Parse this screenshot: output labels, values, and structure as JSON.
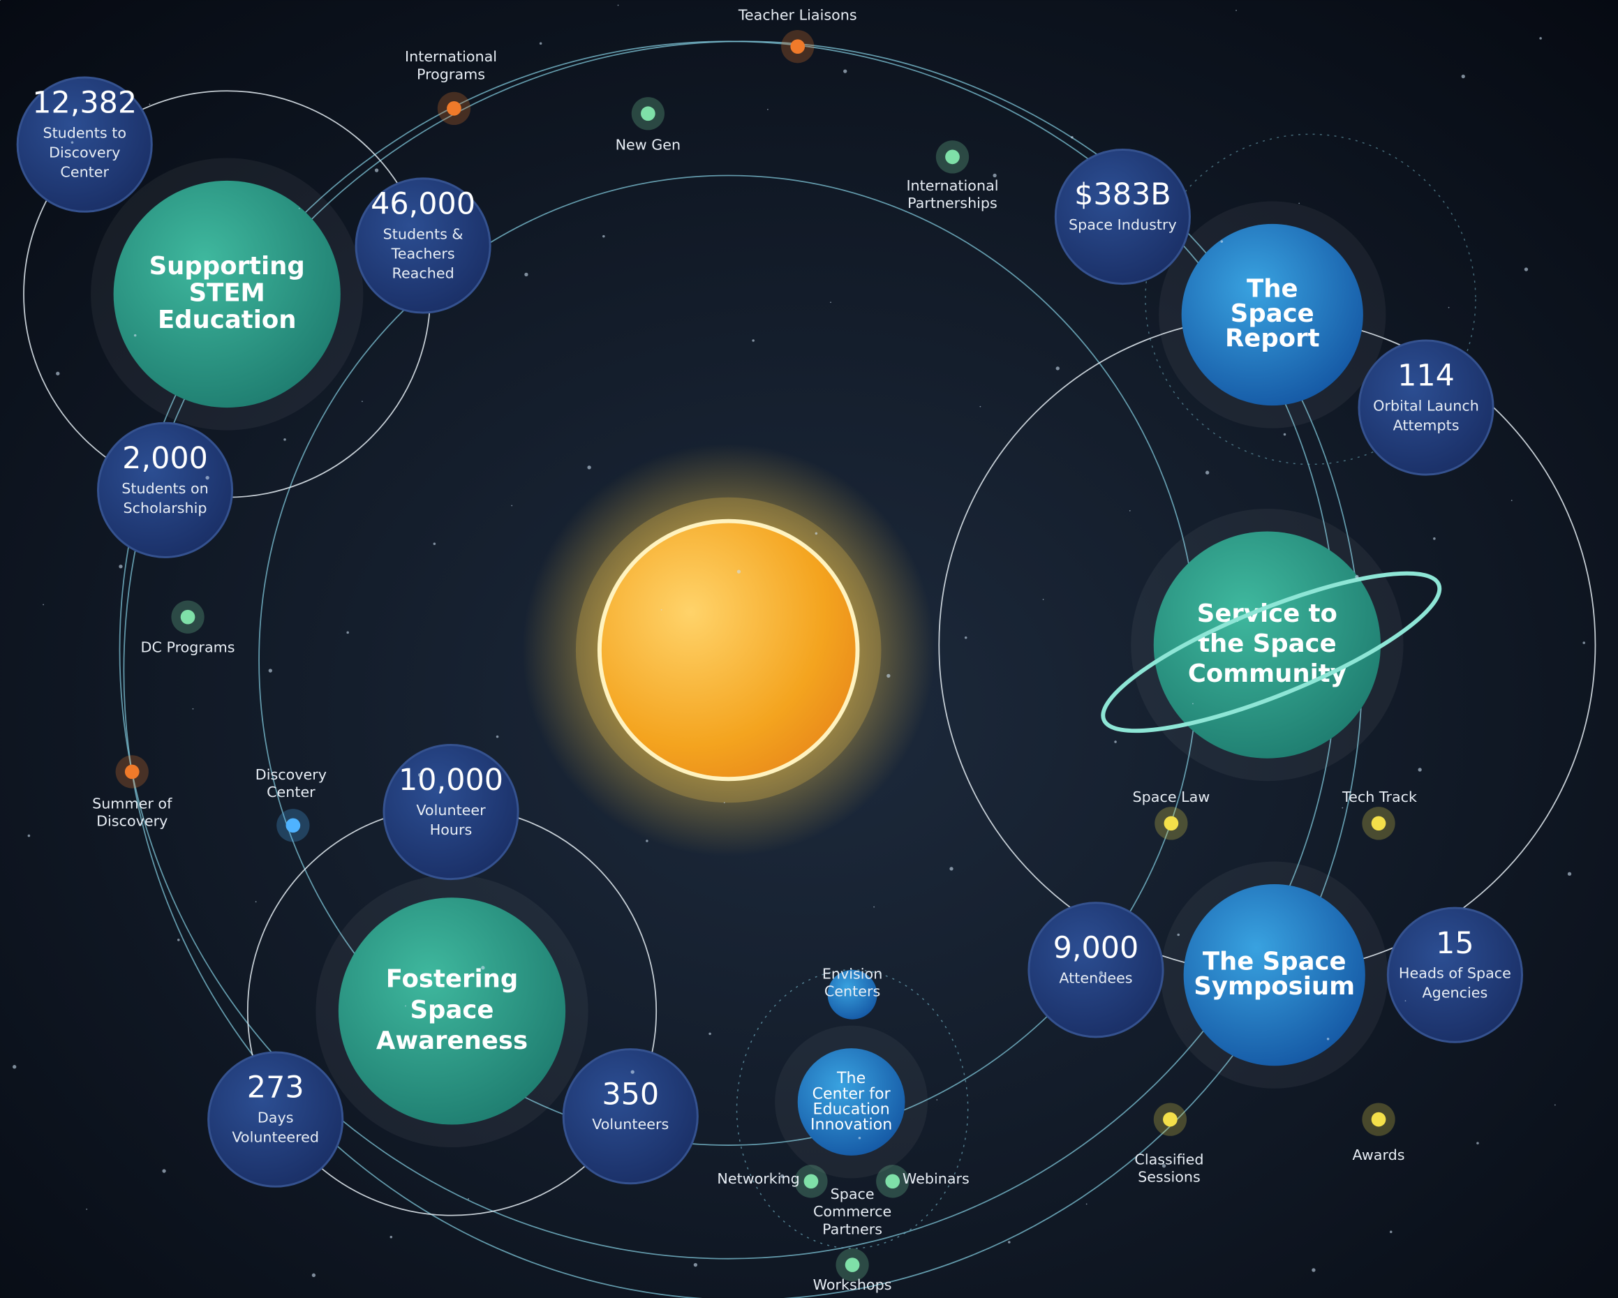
{
  "planets": [
    {
      "lines": [
        "Supporting",
        "STEM",
        "Education"
      ]
    },
    {
      "lines": [
        "The",
        "Space",
        "Report"
      ]
    },
    {
      "lines": [
        "Service to",
        "the Space",
        "Community"
      ]
    },
    {
      "lines": [
        "Fostering",
        "Space",
        "Awareness"
      ]
    },
    {
      "lines": [
        "The Space",
        "Symposium"
      ]
    },
    {
      "lines": [
        "The",
        "Center for",
        "Education",
        "Innovation"
      ]
    }
  ],
  "stats": [
    {
      "value": "12,382",
      "lines": [
        "Students to",
        "Discovery",
        "Center"
      ]
    },
    {
      "value": "46,000",
      "lines": [
        "Students &",
        "Teachers",
        "Reached"
      ]
    },
    {
      "value": "2,000",
      "lines": [
        "Students on",
        "Scholarship"
      ]
    },
    {
      "value": "$383B",
      "lines": [
        "Space Industry"
      ]
    },
    {
      "value": "114",
      "lines": [
        "Orbital Launch",
        "Attempts"
      ]
    },
    {
      "value": "10,000",
      "lines": [
        "Volunteer",
        "Hours"
      ]
    },
    {
      "value": "273",
      "lines": [
        "Days",
        "Volunteered"
      ]
    },
    {
      "value": "350",
      "lines": [
        "Volunteers"
      ]
    },
    {
      "value": "9,000",
      "lines": [
        "Attendees"
      ]
    },
    {
      "value": "15",
      "lines": [
        "Heads of Space",
        "Agencies"
      ]
    }
  ],
  "nodes": [
    {
      "lines": [
        "Teacher Liaisons"
      ]
    },
    {
      "lines": [
        "International",
        "Programs"
      ]
    },
    {
      "lines": [
        "New Gen"
      ]
    },
    {
      "lines": [
        "International",
        "Partnerships"
      ]
    },
    {
      "lines": [
        "DC Programs"
      ]
    },
    {
      "lines": [
        "Summer of",
        "Discovery"
      ]
    },
    {
      "lines": [
        "Discovery",
        "Center"
      ]
    },
    {
      "lines": [
        "Space Law"
      ]
    },
    {
      "lines": [
        "Tech Track"
      ]
    },
    {
      "lines": [
        "Classified",
        "Sessions"
      ]
    },
    {
      "lines": [
        "Awards"
      ]
    },
    {
      "lines": [
        "Envision",
        "Centers"
      ]
    },
    {
      "lines": [
        "Networking"
      ]
    },
    {
      "lines": [
        "Webinars"
      ]
    },
    {
      "lines": [
        "Space",
        "Commerce",
        "Partners"
      ]
    },
    {
      "lines": [
        "Workshops"
      ]
    }
  ]
}
